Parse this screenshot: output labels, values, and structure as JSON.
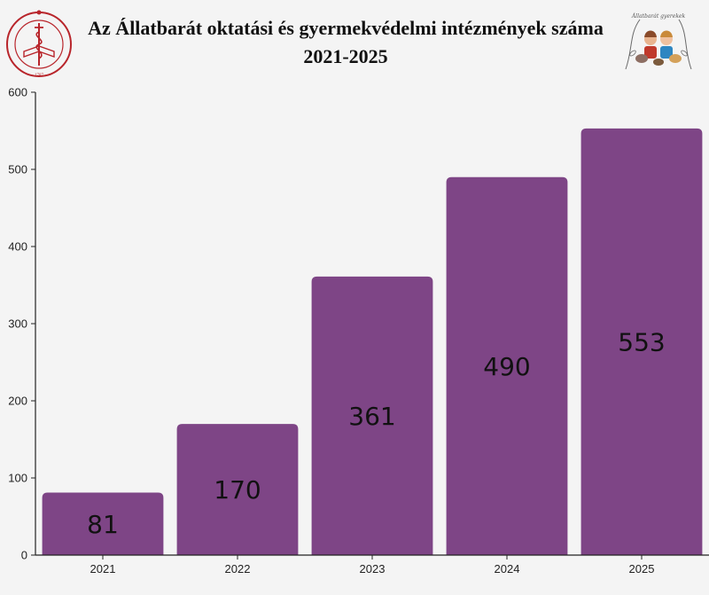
{
  "header": {
    "title_line1": "Az Állatbarát oktatási és gyermekvédelmi intézmények száma",
    "title_line2": "2021-2025"
  },
  "logos": {
    "left_logo": "university-seal",
    "left_logo_text": "SCIENTIARUM · VETERINARIARUM · BUDAPESTINENSIS · 1787 · UNIVERSITAS",
    "right_logo": "animal-friendly-children-illustration",
    "right_logo_text": "Állatbarát gyerekek"
  },
  "colors": {
    "bar": "#7e4586",
    "seal": "#b8252b",
    "axis": "#222222"
  },
  "chart_data": {
    "type": "bar",
    "title": "Az Állatbarát oktatási és gyermekvédelmi intézmények száma 2021-2025",
    "categories": [
      "2021",
      "2022",
      "2023",
      "2024",
      "2025"
    ],
    "values": [
      81,
      170,
      361,
      490,
      553
    ],
    "data_labels": [
      "81",
      "170",
      "361",
      "490",
      "553"
    ],
    "ylim": [
      0,
      600
    ],
    "yticks": [
      0,
      100,
      200,
      300,
      400,
      500,
      600
    ],
    "ytick_labels": [
      "0",
      "100",
      "200",
      "300",
      "400",
      "500",
      "600"
    ],
    "xlabel": "",
    "ylabel": "",
    "grid": false,
    "legend": "none"
  }
}
